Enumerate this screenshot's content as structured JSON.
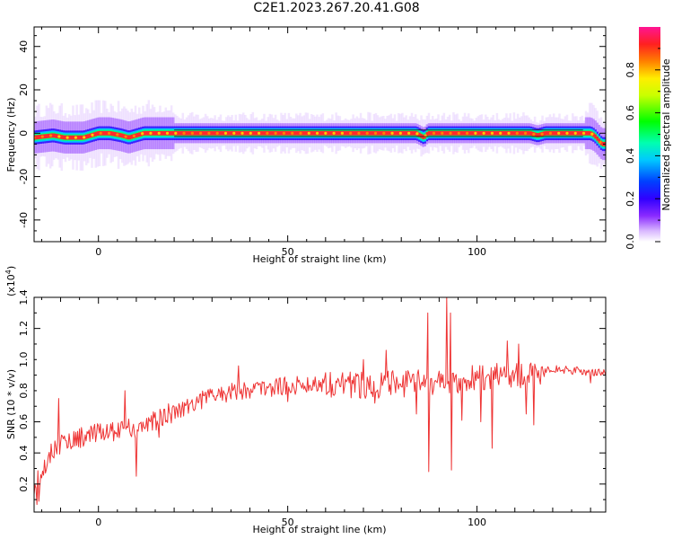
{
  "title": "C2E1.2023.267.20.41.G08",
  "chart_data": [
    {
      "type": "heatmap",
      "xlabel": "Height of straight line (km)",
      "ylabel": "Frequency (Hz)",
      "xlim": [
        -17,
        134
      ],
      "ylim": [
        -50,
        49
      ],
      "xticks": [
        0,
        50,
        100
      ],
      "yticks": [
        -40,
        -20,
        0,
        20,
        40
      ],
      "colorbar": {
        "label": "Normalized spectral amplitude",
        "range": [
          0.0,
          1.0
        ],
        "ticks": [
          "0.0",
          "0.2",
          "0.4",
          "0.6",
          "0.8"
        ],
        "colormap": [
          "#ffffff",
          "#b06cff",
          "#4b00ff",
          "#0038ff",
          "#00c8ff",
          "#00ff9c",
          "#00ff00",
          "#b8ff00",
          "#ffff00",
          "#ff7a00",
          "#ff1a1a",
          "#ff1493"
        ]
      },
      "ridge": {
        "description_points_x": [
          -17,
          -12,
          -9,
          -6,
          -4,
          -2,
          0,
          3,
          6,
          8,
          10,
          12,
          14,
          16,
          20,
          60,
          70,
          84,
          85,
          86,
          87,
          90,
          100,
          102,
          104,
          110,
          114,
          116,
          118,
          130,
          131,
          132,
          133
        ],
        "description_points_y": [
          -2,
          -1,
          -2,
          -2,
          -2,
          -1,
          0,
          0,
          -1,
          -2,
          -1,
          0,
          0,
          0,
          0,
          0,
          0,
          0,
          -1,
          -2,
          0,
          0,
          0,
          0,
          0,
          0,
          0,
          -1,
          0,
          0,
          -1,
          -3,
          -5
        ]
      }
    },
    {
      "type": "line",
      "xlabel": "Height of straight line (km)",
      "ylabel": "SNR (10 * v/v)",
      "yscale_note": "(x10",
      "yscale_exp": "4",
      "yscale_close": ")",
      "xlim": [
        -17,
        134
      ],
      "ylim": [
        0.02,
        1.4
      ],
      "xticks": [
        0,
        50,
        100
      ],
      "yticks": [
        0.2,
        0.4,
        0.6,
        0.8,
        1.0,
        1.2,
        1.4
      ],
      "ytick_labels": [
        "0.2",
        "0.4",
        "0.6",
        "0.8",
        "1.0",
        "1.2",
        "1.4"
      ],
      "color": "#ee3333",
      "trend_x": [
        -17,
        -15,
        -12,
        -10,
        -5,
        0,
        5,
        10,
        15,
        20,
        25,
        30,
        40,
        50,
        60,
        70,
        80,
        85,
        90,
        95,
        100,
        105,
        110,
        115,
        117,
        120,
        125,
        130,
        134
      ],
      "trend_y": [
        0.2,
        0.3,
        0.42,
        0.46,
        0.5,
        0.52,
        0.55,
        0.56,
        0.6,
        0.67,
        0.72,
        0.77,
        0.81,
        0.83,
        0.85,
        0.84,
        0.84,
        0.85,
        0.86,
        0.87,
        0.88,
        0.89,
        0.9,
        0.89,
        0.93,
        0.94,
        0.93,
        0.92,
        0.91
      ],
      "spikes": [
        {
          "x": -10.5,
          "y": 0.75
        },
        {
          "x": 7,
          "y": 0.8
        },
        {
          "x": 10,
          "y": 0.25
        },
        {
          "x": 16,
          "y": 0.5
        },
        {
          "x": 37,
          "y": 0.96
        },
        {
          "x": 50,
          "y": 0.73
        },
        {
          "x": 70,
          "y": 1.0
        },
        {
          "x": 73,
          "y": 0.72
        },
        {
          "x": 76,
          "y": 1.06
        },
        {
          "x": 84,
          "y": 0.65
        },
        {
          "x": 87,
          "y": 1.3
        },
        {
          "x": 87.3,
          "y": 0.28
        },
        {
          "x": 92,
          "y": 1.4
        },
        {
          "x": 93,
          "y": 1.3
        },
        {
          "x": 93.3,
          "y": 0.29
        },
        {
          "x": 96,
          "y": 0.61
        },
        {
          "x": 101,
          "y": 0.6
        },
        {
          "x": 104,
          "y": 0.43
        },
        {
          "x": 108,
          "y": 1.12
        },
        {
          "x": 111,
          "y": 1.1
        },
        {
          "x": 113,
          "y": 0.65
        },
        {
          "x": 115,
          "y": 0.58
        },
        {
          "x": 117,
          "y": 0.95
        },
        {
          "x": 130,
          "y": 0.85
        }
      ]
    }
  ]
}
